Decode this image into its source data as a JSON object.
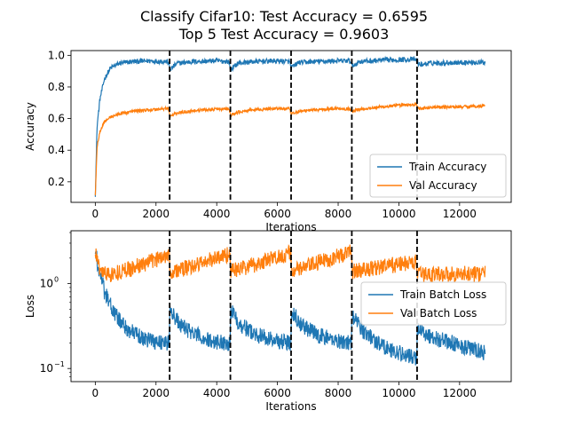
{
  "figure": {
    "title_line1": "Classify Cifar10: Test Accuracy = 0.6595",
    "title_line2": "Top 5 Test Accuracy = 0.9603"
  },
  "chart_data": [
    {
      "type": "line",
      "xlabel": "Iterations",
      "ylabel": "Accuracy",
      "xlim": [
        -800,
        13700
      ],
      "ylim": [
        0.07,
        1.03
      ],
      "xticks": [
        0,
        2000,
        4000,
        6000,
        8000,
        10000,
        12000
      ],
      "yticks": [
        0.2,
        0.4,
        0.6,
        0.8,
        1.0
      ],
      "ytick_labels": [
        "0.2",
        "0.4",
        "0.6",
        "0.8",
        "1.0"
      ],
      "legend_position": "lower-right",
      "vlines": [
        2450,
        4450,
        6450,
        8450,
        10600
      ],
      "series": [
        {
          "name": "Train Accuracy",
          "color": "#1f77b4",
          "x": [
            0,
            60,
            150,
            300,
            500,
            800,
            1200,
            1800,
            2400,
            2460,
            2700,
            3200,
            4000,
            4400,
            4460,
            4700,
            5200,
            6000,
            6400,
            6460,
            6700,
            7200,
            8000,
            8400,
            8460,
            8700,
            9500,
            10500,
            10600,
            10660,
            11000,
            12000,
            12850
          ],
          "y": [
            0.12,
            0.55,
            0.72,
            0.85,
            0.92,
            0.95,
            0.96,
            0.965,
            0.96,
            0.91,
            0.95,
            0.96,
            0.965,
            0.96,
            0.91,
            0.95,
            0.96,
            0.965,
            0.96,
            0.92,
            0.955,
            0.96,
            0.965,
            0.965,
            0.93,
            0.96,
            0.97,
            0.975,
            0.97,
            0.94,
            0.95,
            0.955,
            0.955
          ]
        },
        {
          "name": "Val Accuracy",
          "color": "#ff7f0e",
          "x": [
            0,
            60,
            150,
            300,
            500,
            800,
            1200,
            1800,
            2400,
            2460,
            2700,
            3200,
            4000,
            4400,
            4460,
            4700,
            5200,
            6000,
            6400,
            6460,
            6700,
            7200,
            8000,
            8400,
            8460,
            8700,
            9500,
            10500,
            10600,
            10660,
            11000,
            12000,
            12850
          ],
          "y": [
            0.12,
            0.42,
            0.52,
            0.58,
            0.61,
            0.63,
            0.645,
            0.655,
            0.665,
            0.615,
            0.635,
            0.65,
            0.66,
            0.66,
            0.62,
            0.64,
            0.655,
            0.665,
            0.66,
            0.625,
            0.645,
            0.655,
            0.665,
            0.66,
            0.645,
            0.66,
            0.675,
            0.69,
            0.685,
            0.66,
            0.67,
            0.675,
            0.68
          ]
        }
      ]
    },
    {
      "type": "line",
      "xlabel": "Iterations",
      "ylabel": "Loss",
      "scale_y": "log",
      "xlim": [
        -800,
        13700
      ],
      "ylim": [
        0.07,
        4.2
      ],
      "xticks": [
        0,
        2000,
        4000,
        6000,
        8000,
        10000,
        12000
      ],
      "yticks": [
        0.1,
        1
      ],
      "legend_position": "center-right",
      "vlines": [
        2450,
        4450,
        6450,
        8450,
        10600
      ],
      "series": [
        {
          "name": "Train Batch Loss",
          "color": "#1f77b4",
          "x": [
            0,
            100,
            300,
            600,
            1000,
            1500,
            2000,
            2440,
            2460,
            2800,
            3300,
            3800,
            4440,
            4460,
            4800,
            5300,
            5800,
            6440,
            6460,
            6800,
            7300,
            7800,
            8440,
            8460,
            8800,
            9300,
            9800,
            10590,
            10610,
            11000,
            11700,
            12400,
            12850
          ],
          "y": [
            2.5,
            1.5,
            0.8,
            0.45,
            0.3,
            0.23,
            0.21,
            0.2,
            0.48,
            0.32,
            0.25,
            0.21,
            0.2,
            0.48,
            0.32,
            0.25,
            0.22,
            0.2,
            0.48,
            0.32,
            0.25,
            0.22,
            0.2,
            0.42,
            0.28,
            0.2,
            0.16,
            0.13,
            0.3,
            0.24,
            0.2,
            0.17,
            0.15
          ]
        },
        {
          "name": "Val Batch Loss",
          "color": "#ff7f0e",
          "x": [
            0,
            100,
            300,
            600,
            1000,
            1500,
            2000,
            2440,
            2460,
            2800,
            3300,
            3800,
            4440,
            4460,
            4800,
            5300,
            5800,
            6440,
            6460,
            6800,
            7300,
            7800,
            8440,
            8460,
            8800,
            9300,
            9800,
            10590,
            10610,
            11000,
            11700,
            12400,
            12850
          ],
          "y": [
            2.5,
            1.6,
            1.3,
            1.3,
            1.45,
            1.65,
            1.9,
            2.3,
            1.35,
            1.45,
            1.65,
            1.9,
            2.25,
            1.4,
            1.5,
            1.7,
            1.95,
            2.3,
            1.4,
            1.5,
            1.75,
            2.0,
            2.35,
            1.4,
            1.45,
            1.55,
            1.65,
            1.8,
            1.25,
            1.3,
            1.3,
            1.3,
            1.3
          ]
        }
      ]
    }
  ]
}
